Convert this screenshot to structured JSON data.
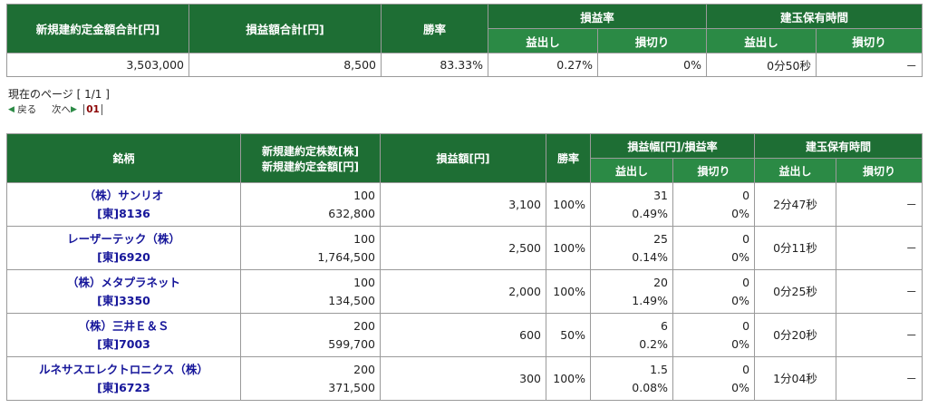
{
  "summary": {
    "headers": {
      "total_amount": "新規建約定金額合計[円]",
      "pl_total": "損益額合計[円]",
      "win_rate": "勝率",
      "pl_rate": "損益率",
      "hold_time": "建玉保有時間",
      "profit": "益出し",
      "loss": "損切り"
    },
    "row": {
      "total_amount": "3,503,000",
      "pl_total": "8,500",
      "win_rate": "83.33%",
      "pl_rate_profit": "0.27%",
      "pl_rate_loss": "0%",
      "hold_profit": "0分50秒",
      "hold_loss": "－"
    }
  },
  "pager": {
    "current_page": "現在のページ [ 1/1 ]",
    "back": "戻る",
    "next": "次へ",
    "page": "01"
  },
  "detail": {
    "headers": {
      "stock": "銘柄",
      "shares": "新規建約定株数[株]",
      "amount": "新規建約定金額[円]",
      "pl_amount": "損益額[円]",
      "win_rate": "勝率",
      "pl_width": "損益幅[円]/損益率",
      "hold_time": "建玉保有時間",
      "profit": "益出し",
      "loss": "損切り"
    },
    "rows": [
      {
        "name": "（株）サンリオ",
        "code": "[東]8136",
        "shares": "100",
        "amount": "632,800",
        "pl": "3,100",
        "win": "100%",
        "profit_w": "31",
        "profit_r": "0.49%",
        "loss_w": "0",
        "loss_r": "0%",
        "hold_profit": "2分47秒",
        "hold_loss": "－"
      },
      {
        "name": "レーザーテック（株）",
        "code": "[東]6920",
        "shares": "100",
        "amount": "1,764,500",
        "pl": "2,500",
        "win": "100%",
        "profit_w": "25",
        "profit_r": "0.14%",
        "loss_w": "0",
        "loss_r": "0%",
        "hold_profit": "0分11秒",
        "hold_loss": "－"
      },
      {
        "name": "（株）メタプラネット",
        "code": "[東]3350",
        "shares": "100",
        "amount": "134,500",
        "pl": "2,000",
        "win": "100%",
        "profit_w": "20",
        "profit_r": "1.49%",
        "loss_w": "0",
        "loss_r": "0%",
        "hold_profit": "0分25秒",
        "hold_loss": "－"
      },
      {
        "name": "（株）三井Ｅ＆Ｓ",
        "code": "[東]7003",
        "shares": "200",
        "amount": "599,700",
        "pl": "600",
        "win": "50%",
        "profit_w": "6",
        "profit_r": "0.2%",
        "loss_w": "0",
        "loss_r": "0%",
        "hold_profit": "0分20秒",
        "hold_loss": "－"
      },
      {
        "name": "ルネサスエレクトロニクス（株）",
        "code": "[東]6723",
        "shares": "200",
        "amount": "371,500",
        "pl": "300",
        "win": "100%",
        "profit_w": "1.5",
        "profit_r": "0.08%",
        "loss_w": "0",
        "loss_r": "0%",
        "hold_profit": "1分04秒",
        "hold_loss": "－"
      }
    ]
  },
  "colors": {
    "header_dark": "#1e6e34",
    "header_light": "#2b8a45",
    "link": "#16169a",
    "page_active": "#8b0000"
  }
}
